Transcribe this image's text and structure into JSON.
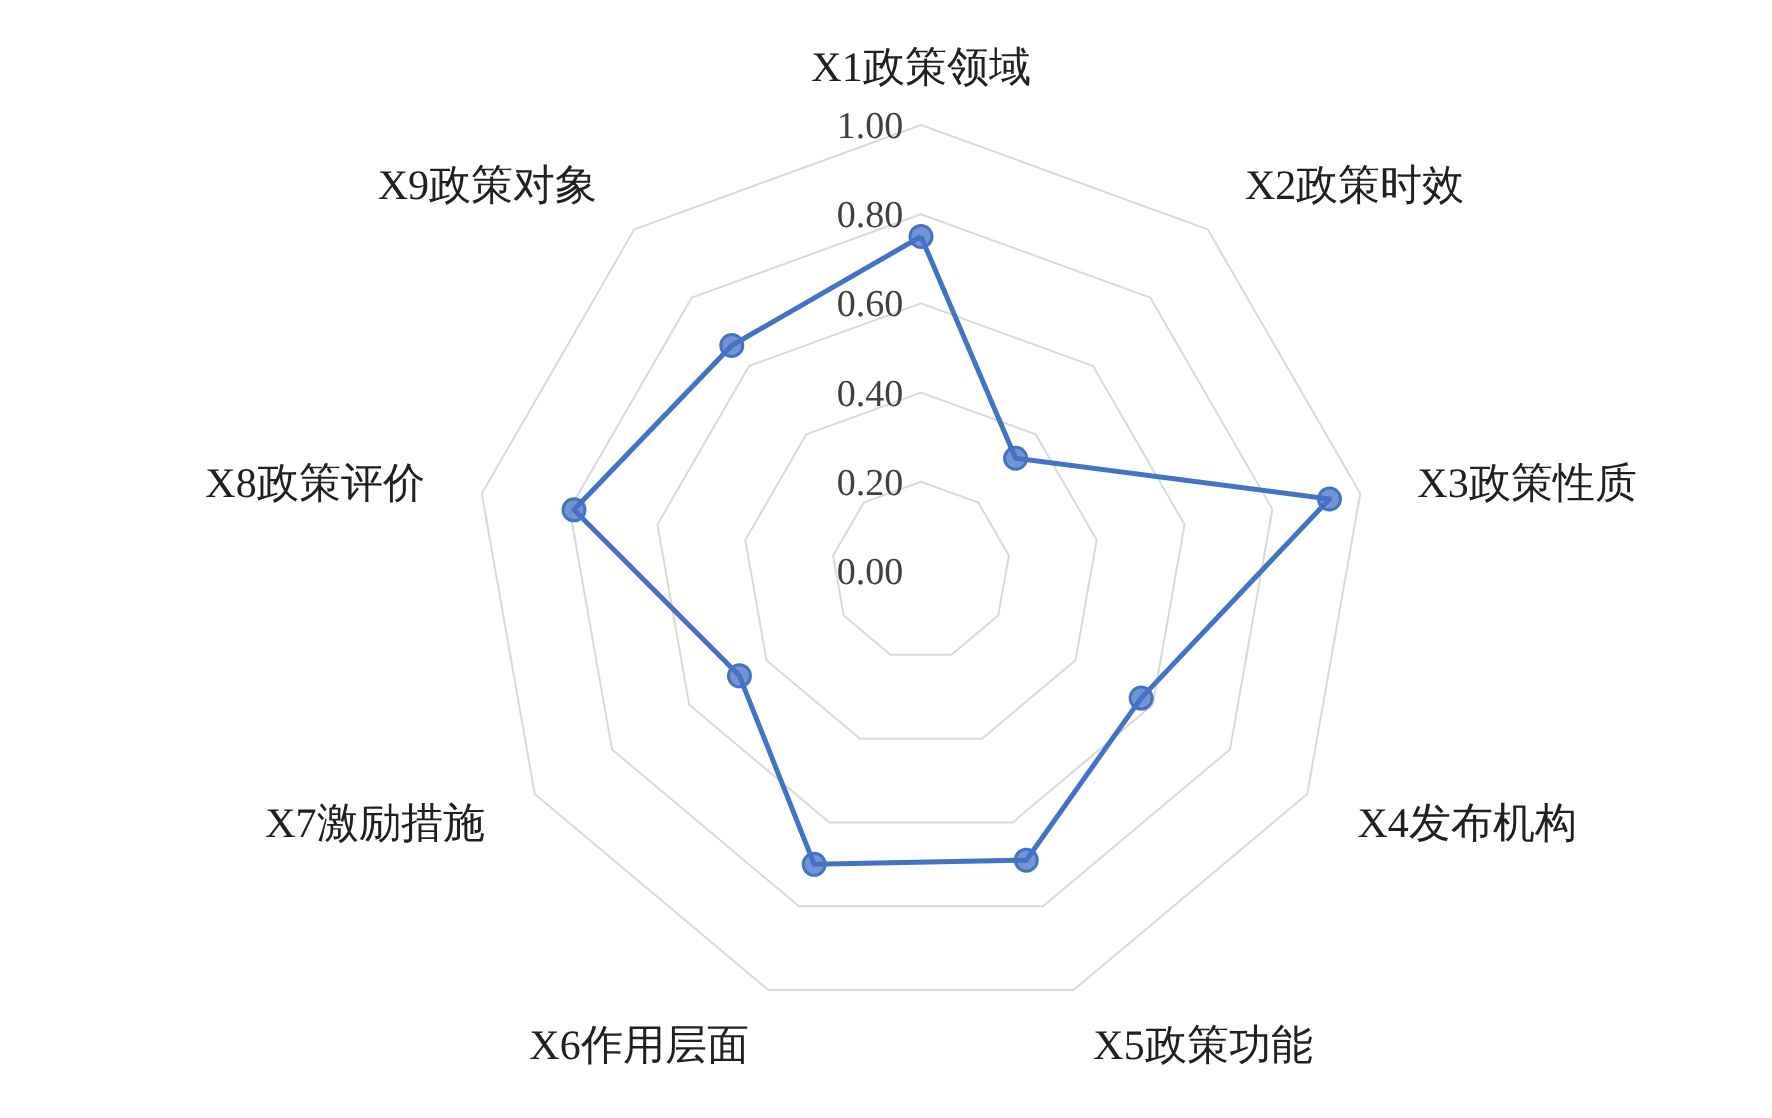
{
  "chart_data": {
    "type": "radar",
    "categories": [
      "X1政策领域",
      "X2政策时效",
      "X3政策性质",
      "X4发布机构",
      "X5政策功能",
      "X6作用层面",
      "X7激励措施",
      "X8政策评价",
      "X9政策对象"
    ],
    "series": [
      {
        "color": "#4472c4",
        "values": [
          0.75,
          0.33,
          0.93,
          0.57,
          0.69,
          0.7,
          0.47,
          0.79,
          0.66
        ]
      }
    ],
    "ylim": [
      0,
      1
    ],
    "yticks": [
      {
        "value": 0,
        "label": "0.00"
      },
      {
        "value": 0.2,
        "label": "0.20"
      },
      {
        "value": 0.4,
        "label": "0.40"
      },
      {
        "value": 0.6,
        "label": "0.60"
      },
      {
        "value": 0.8,
        "label": "0.80"
      },
      {
        "value": 1,
        "label": "1.00"
      }
    ],
    "grid": true,
    "marker": "circle",
    "line_style": "solid"
  }
}
